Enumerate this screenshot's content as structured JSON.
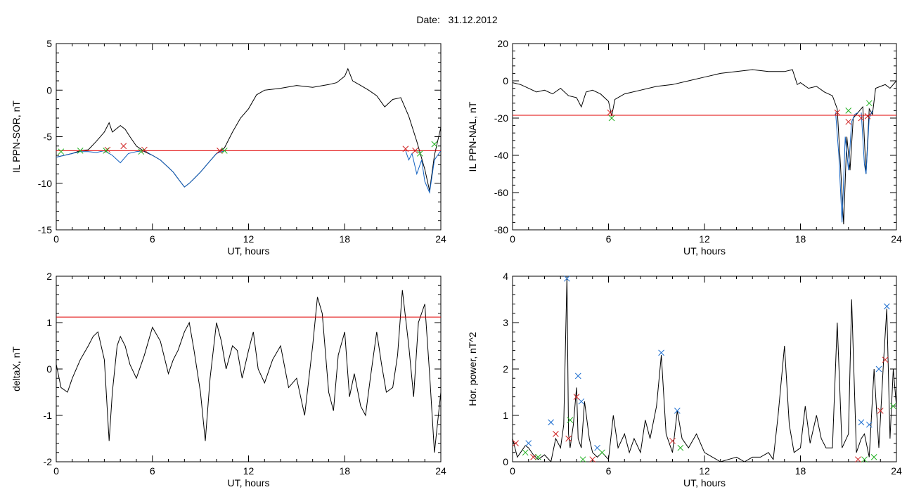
{
  "figure": {
    "date_label": "Date:",
    "date_value": "31.12.2012"
  },
  "colors": {
    "axis": "#000000",
    "signal": "#000000",
    "detrended": "#1060c0",
    "threshold": "#e00000",
    "marker_red": "#d02020",
    "marker_green": "#20b020",
    "marker_blue": "#2070d0"
  },
  "chart_data": [
    {
      "id": "p1",
      "type": "line",
      "title": "",
      "xlabel": "UT, hours",
      "ylabel": "IL PPN-SOR, nT",
      "xlim": [
        0,
        24
      ],
      "ylim": [
        -15,
        5
      ],
      "xticks": [
        "0",
        "6",
        "12",
        "18",
        "24"
      ],
      "yticks": [
        "-15",
        "-10",
        "-5",
        "0",
        "5"
      ],
      "grid": false,
      "threshold": -6.5,
      "series": [
        {
          "role": "signal",
          "x": [
            0,
            0.5,
            1,
            1.5,
            2,
            2.5,
            3,
            3.3,
            3.5,
            4,
            4.3,
            4.6,
            5,
            5.5,
            6,
            6.5,
            7,
            7.3,
            7.6,
            8,
            8.3,
            8.6,
            9,
            9.5,
            10,
            10.5,
            11,
            11.5,
            12,
            12.5,
            13,
            14,
            15,
            16,
            17,
            17.5,
            18,
            18.2,
            18.5,
            19,
            19.5,
            20,
            20.5,
            21,
            21.5,
            22,
            22.5,
            23,
            23.3,
            23.6,
            24
          ],
          "y": [
            -7.2,
            -7,
            -6.8,
            -6.5,
            -6.4,
            -5.5,
            -4.5,
            -3.5,
            -4.5,
            -3.8,
            -4.2,
            -5,
            -6,
            -6.6,
            -7,
            -7.5,
            -8.3,
            -8.8,
            -9.5,
            -10.4,
            -10,
            -9.5,
            -8.8,
            -7.8,
            -6.8,
            -6.2,
            -4.5,
            -3,
            -2,
            -0.5,
            0,
            0.2,
            0.5,
            0.3,
            0.6,
            0.8,
            1.5,
            2.3,
            1,
            0.5,
            0,
            -0.6,
            -1.8,
            -1,
            -0.8,
            -2.8,
            -5.5,
            -8.5,
            -10.8,
            -7,
            -4
          ]
        },
        {
          "role": "detrended",
          "x": [
            0,
            0.5,
            1,
            1.5,
            2,
            2.5,
            3,
            3.5,
            4,
            4.5,
            5,
            5.5,
            6,
            6.5,
            7,
            7.3,
            7.6,
            8,
            8.3,
            8.6,
            9,
            9.5,
            10,
            10.5
          ],
          "y": [
            -7.2,
            -7,
            -6.8,
            -6.6,
            -6.6,
            -6.7,
            -6.5,
            -7,
            -7.8,
            -6.8,
            -6.6,
            -6.5,
            -7,
            -7.5,
            -8.3,
            -8.8,
            -9.5,
            -10.4,
            -10,
            -9.5,
            -8.8,
            -7.8,
            -6.8,
            -6.5
          ]
        },
        {
          "role": "detrended",
          "x": [
            21.8,
            22,
            22.2,
            22.5,
            22.8,
            23,
            23.3,
            23.6,
            24
          ],
          "y": [
            -6.5,
            -7.5,
            -6.8,
            -9,
            -7.5,
            -9.8,
            -11,
            -7.5,
            -6.5
          ]
        }
      ],
      "markers": {
        "red": {
          "x": [
            3.2,
            4.2,
            5.5,
            10.2,
            21.8,
            22.4
          ],
          "y": [
            -6.4,
            -6,
            -6.4,
            -6.5,
            -6.3,
            -6.5
          ]
        },
        "green": {
          "x": [
            0.3,
            1.5,
            3.1,
            5.3,
            10.5,
            22.7,
            23.6
          ],
          "y": [
            -6.6,
            -6.5,
            -6.5,
            -6.6,
            -6.5,
            -6.8,
            -5.8
          ]
        }
      }
    },
    {
      "id": "p2",
      "type": "line",
      "title": "",
      "xlabel": "UT, hours",
      "ylabel": "IL PPN-NAL, nT",
      "xlim": [
        0,
        24
      ],
      "ylim": [
        -80,
        20
      ],
      "xticks": [
        "0",
        "6",
        "12",
        "18",
        "24"
      ],
      "yticks": [
        "-80",
        "-60",
        "-40",
        "-20",
        "0",
        "20"
      ],
      "grid": false,
      "threshold": -18.5,
      "series": [
        {
          "role": "signal",
          "x": [
            0,
            0.5,
            1,
            1.5,
            2,
            2.5,
            3,
            3.5,
            4,
            4.3,
            4.6,
            5,
            5.5,
            6,
            6.2,
            6.4,
            7,
            8,
            9,
            10,
            11,
            12,
            13,
            14,
            15,
            16,
            17,
            17.5,
            17.8,
            18,
            18.5,
            19,
            19.5,
            20,
            20.3,
            20.5,
            20.7,
            20.9,
            21.1,
            21.3,
            21.6,
            21.9,
            22.1,
            22.3,
            22.5,
            22.7,
            23,
            23.3,
            23.6,
            24
          ],
          "y": [
            -1,
            -2,
            -4,
            -6,
            -5,
            -7,
            -4,
            -8,
            -9,
            -14,
            -6,
            -5,
            -7,
            -11,
            -19,
            -10,
            -7,
            -5,
            -3,
            -2,
            0,
            2,
            4,
            5,
            6,
            5,
            5,
            6,
            -2,
            -1,
            -4,
            -3,
            -6,
            -8,
            -15,
            -45,
            -77,
            -30,
            -48,
            -20,
            -17,
            -14,
            -50,
            -15,
            -18,
            -4,
            -3,
            -2,
            -4,
            0
          ]
        },
        {
          "role": "detrended",
          "x": [
            20.2,
            20.4,
            20.6,
            20.8,
            21,
            21.2,
            21.4,
            21.6
          ],
          "y": [
            -17,
            -40,
            -76,
            -30,
            -48,
            -22,
            -18,
            -17
          ]
        },
        {
          "role": "detrended",
          "x": [
            21.8,
            22,
            22.1,
            22.3,
            22.5
          ],
          "y": [
            -17,
            -45,
            -50,
            -20,
            -16
          ]
        }
      ],
      "markers": {
        "red": {
          "x": [
            6.1,
            20.3,
            21,
            21.8,
            22.2
          ],
          "y": [
            -17,
            -17,
            -22,
            -20,
            -19
          ]
        },
        "green": {
          "x": [
            6.2,
            21,
            22.3
          ],
          "y": [
            -20,
            -16,
            -12
          ]
        }
      }
    },
    {
      "id": "p3",
      "type": "line",
      "title": "",
      "xlabel": "UT, hours",
      "ylabel": "deltaX, nT",
      "xlim": [
        0,
        24
      ],
      "ylim": [
        -2,
        2
      ],
      "xticks": [
        "0",
        "6",
        "12",
        "18",
        "24"
      ],
      "yticks": [
        "-2",
        "-1",
        "0",
        "1",
        "2"
      ],
      "grid": false,
      "threshold": 1.12,
      "series": [
        {
          "role": "signal",
          "x": [
            0,
            0.3,
            0.7,
            1,
            1.5,
            2,
            2.3,
            2.6,
            3,
            3.3,
            3.5,
            3.8,
            4,
            4.3,
            4.6,
            5,
            5.5,
            6,
            6.5,
            7,
            7.3,
            7.6,
            8,
            8.3,
            8.6,
            9,
            9.3,
            9.6,
            10,
            10.3,
            10.6,
            11,
            11.3,
            11.6,
            12,
            12.3,
            12.6,
            13,
            13.5,
            14,
            14.5,
            15,
            15.5,
            16,
            16.3,
            16.6,
            17,
            17.3,
            17.6,
            18,
            18.3,
            18.6,
            19,
            19.3,
            19.6,
            20,
            20.3,
            20.6,
            21,
            21.3,
            21.6,
            22,
            22.3,
            22.6,
            23,
            23.3,
            23.6,
            24
          ],
          "y": [
            0.1,
            -0.4,
            -0.5,
            -0.2,
            0.2,
            0.5,
            0.7,
            0.8,
            0.2,
            -1.55,
            -0.5,
            0.5,
            0.7,
            0.5,
            0.1,
            -0.2,
            0.3,
            0.9,
            0.6,
            -0.1,
            0.2,
            0.4,
            0.8,
            1.0,
            0.4,
            -0.5,
            -1.55,
            -0.2,
            1.0,
            0.6,
            0,
            0.5,
            0.4,
            -0.2,
            0.4,
            0.8,
            0,
            -0.3,
            0.2,
            0.5,
            -0.4,
            -0.2,
            -1.0,
            0.5,
            1.55,
            1.2,
            -0.5,
            -0.9,
            0.3,
            0.8,
            -0.6,
            -0.1,
            -0.8,
            -1.0,
            -0.2,
            0.8,
            0.1,
            -0.5,
            -0.4,
            0.3,
            1.7,
            0.5,
            -0.6,
            1.0,
            1.4,
            -0.1,
            -1.8,
            -0.5
          ]
        }
      ],
      "markers": {
        "red": {
          "x": [],
          "y": []
        },
        "green": {
          "x": [],
          "y": []
        }
      }
    },
    {
      "id": "p4",
      "type": "line",
      "title": "",
      "xlabel": "UT, hours",
      "ylabel": "Hor. power, nT^2",
      "xlim": [
        0,
        24
      ],
      "ylim": [
        0,
        4
      ],
      "xticks": [
        "0",
        "6",
        "12",
        "18",
        "24"
      ],
      "yticks": [
        "0",
        "1",
        "2",
        "3",
        "4"
      ],
      "grid": false,
      "threshold": null,
      "series": [
        {
          "role": "signal",
          "x": [
            0,
            0.3,
            0.5,
            0.8,
            1,
            1.3,
            1.6,
            2,
            2.4,
            2.7,
            3,
            3.2,
            3.4,
            3.5,
            3.6,
            3.8,
            4,
            4.1,
            4.3,
            4.5,
            4.8,
            5,
            5.3,
            5.6,
            6,
            6.3,
            6.6,
            7,
            7.3,
            7.6,
            8,
            8.3,
            8.6,
            9,
            9.3,
            9.6,
            10,
            10.3,
            10.6,
            11,
            11.5,
            12,
            12.5,
            13,
            13.5,
            14,
            14.5,
            15,
            15.5,
            16,
            16.3,
            16.6,
            17,
            17.3,
            17.6,
            18,
            18.3,
            18.6,
            19,
            19.3,
            19.6,
            20,
            20.3,
            20.6,
            21,
            21.2,
            21.5,
            21.8,
            22,
            22.3,
            22.6,
            22.9,
            23.2,
            23.4,
            23.6,
            23.8,
            24
          ],
          "y": [
            0.5,
            0.1,
            0.2,
            0.35,
            0.3,
            0.15,
            0.05,
            0.15,
            0,
            0.5,
            0.3,
            0.8,
            4.0,
            0.6,
            0.3,
            0.8,
            1.6,
            0.5,
            0.3,
            1.3,
            0.5,
            0.2,
            0.1,
            0.2,
            0.05,
            1.0,
            0.3,
            0.6,
            0.2,
            0.5,
            0.2,
            0.9,
            0.5,
            1.2,
            2.3,
            0.6,
            0.2,
            1.1,
            0.5,
            0.3,
            0.6,
            0.2,
            0.1,
            0,
            0.05,
            0.1,
            0,
            0.1,
            0.1,
            0.2,
            0.05,
            1.0,
            2.5,
            0.8,
            0.2,
            0.3,
            1.2,
            0.4,
            1.0,
            0.5,
            0.3,
            0.3,
            3.0,
            0.3,
            0.6,
            3.5,
            0.2,
            0.5,
            0.6,
            0.1,
            2.0,
            0.3,
            2.2,
            3.3,
            0.5,
            2.0,
            1.2
          ]
        }
      ],
      "markers": {
        "blue": {
          "x": [
            1,
            2.4,
            3.4,
            4.1,
            4.3,
            5.3,
            9.3,
            10.3,
            21.8,
            22.3,
            22.9,
            23.4
          ],
          "y": [
            0.4,
            0.85,
            3.95,
            1.85,
            1.3,
            0.3,
            2.35,
            1.1,
            0.85,
            0.8,
            2.0,
            3.35
          ]
        },
        "red": {
          "x": [
            0.2,
            1.3,
            2.7,
            3.5,
            4.0,
            5.0,
            10.0,
            21.6,
            23.0,
            23.3
          ],
          "y": [
            0.4,
            0.1,
            0.6,
            0.5,
            1.4,
            0.05,
            0.45,
            0.05,
            1.1,
            2.2
          ]
        },
        "green": {
          "x": [
            0.8,
            1.6,
            3.6,
            4.4,
            5.6,
            10.5,
            22.0,
            22.6,
            23.8
          ],
          "y": [
            0.2,
            0.1,
            0.9,
            0.05,
            0.2,
            0.3,
            0.05,
            0.1,
            1.2
          ]
        }
      }
    }
  ]
}
